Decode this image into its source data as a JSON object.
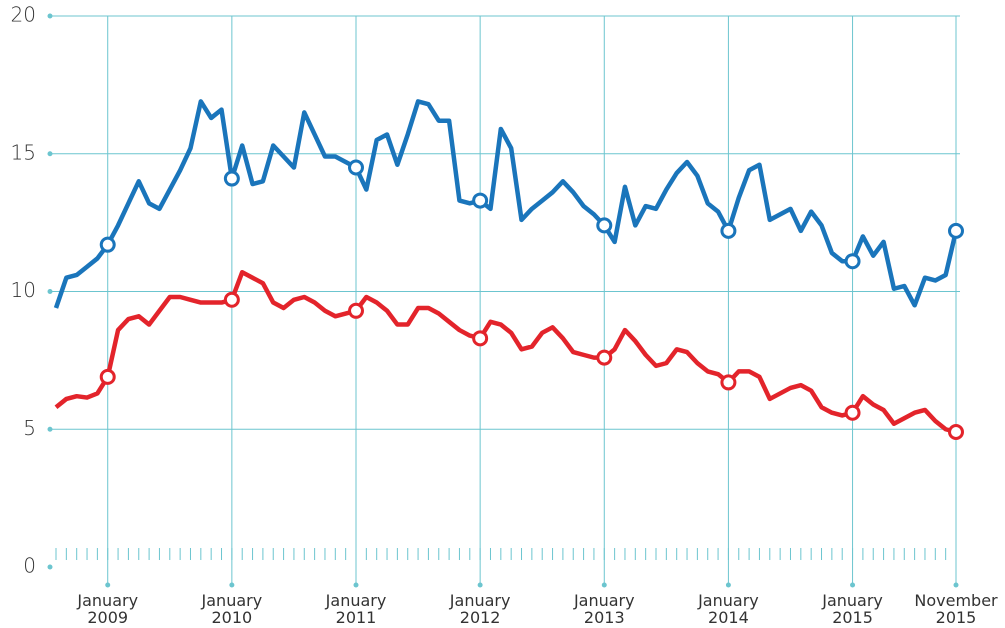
{
  "chart_data": {
    "type": "line",
    "categories": [
      null,
      null,
      null,
      null,
      null,
      "January 2009",
      null,
      null,
      null,
      null,
      null,
      null,
      null,
      null,
      null,
      null,
      null,
      "January 2010",
      null,
      null,
      null,
      null,
      null,
      null,
      null,
      null,
      null,
      null,
      null,
      "January 2011",
      null,
      null,
      null,
      null,
      null,
      null,
      null,
      null,
      null,
      null,
      null,
      "January 2012",
      null,
      null,
      null,
      null,
      null,
      null,
      null,
      null,
      null,
      null,
      null,
      "January 2013",
      null,
      null,
      null,
      null,
      null,
      null,
      null,
      null,
      null,
      null,
      null,
      "January 2014",
      null,
      null,
      null,
      null,
      null,
      null,
      null,
      null,
      null,
      null,
      null,
      "January 2015",
      null,
      null,
      null,
      null,
      null,
      null,
      null,
      null,
      null,
      "November 2015"
    ],
    "series": [
      {
        "color": "#1a75bb",
        "values": [
          9.4,
          10.5,
          10.6,
          10.9,
          11.2,
          11.7,
          12.4,
          13.2,
          14.0,
          13.2,
          13.0,
          13.7,
          14.4,
          15.2,
          16.9,
          16.3,
          16.6,
          14.1,
          15.3,
          13.9,
          14.0,
          15.3,
          14.9,
          14.5,
          16.5,
          15.7,
          14.9,
          14.9,
          14.7,
          14.5,
          13.7,
          15.5,
          15.7,
          14.6,
          15.7,
          16.9,
          16.8,
          16.2,
          16.2,
          13.3,
          13.2,
          13.3,
          13.0,
          15.9,
          15.2,
          12.6,
          13.0,
          13.3,
          13.6,
          14.0,
          13.6,
          13.1,
          12.8,
          12.4,
          11.8,
          13.8,
          12.4,
          13.1,
          13.0,
          13.7,
          14.3,
          14.7,
          14.2,
          13.2,
          12.9,
          12.2,
          13.4,
          14.4,
          14.6,
          12.6,
          12.8,
          13.0,
          12.2,
          12.9,
          12.4,
          11.4,
          11.1,
          11.1,
          12.0,
          11.3,
          11.8,
          10.1,
          10.2,
          9.5,
          10.5,
          10.4,
          10.6,
          12.2
        ]
      },
      {
        "color": "#e3242b",
        "values": [
          5.8,
          6.1,
          6.2,
          6.15,
          6.3,
          6.9,
          8.6,
          9.0,
          9.1,
          8.8,
          9.3,
          9.8,
          9.8,
          9.7,
          9.6,
          9.6,
          9.6,
          9.7,
          10.7,
          10.5,
          10.3,
          9.6,
          9.4,
          9.7,
          9.8,
          9.6,
          9.3,
          9.1,
          9.2,
          9.3,
          9.8,
          9.6,
          9.3,
          8.8,
          8.8,
          9.4,
          9.4,
          9.2,
          8.9,
          8.6,
          8.4,
          8.3,
          8.9,
          8.8,
          8.5,
          7.9,
          8.0,
          8.5,
          8.7,
          8.3,
          7.8,
          7.7,
          7.6,
          7.6,
          7.9,
          8.6,
          8.2,
          7.7,
          7.3,
          7.4,
          7.9,
          7.8,
          7.4,
          7.1,
          7.0,
          6.7,
          7.1,
          7.1,
          6.9,
          6.1,
          6.3,
          6.5,
          6.6,
          6.4,
          5.8,
          5.6,
          5.5,
          5.6,
          6.2,
          5.9,
          5.7,
          5.2,
          5.4,
          5.6,
          5.7,
          5.3,
          5.0,
          4.9
        ]
      }
    ],
    "ylim": [
      0,
      20
    ],
    "yticks": [
      0,
      5,
      10,
      15,
      20
    ],
    "grid": true,
    "grid_color": "#6cc5cf"
  }
}
